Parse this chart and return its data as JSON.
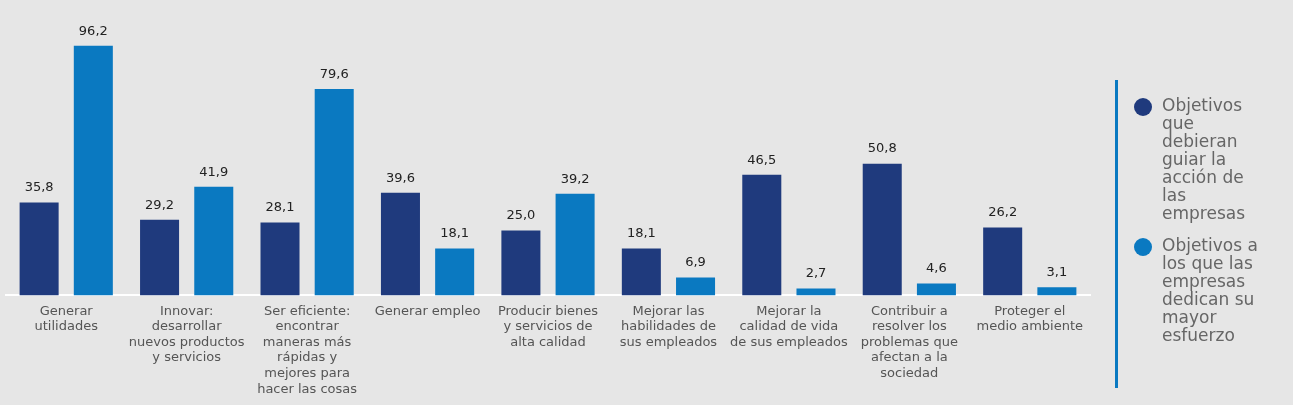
{
  "chart_data": {
    "type": "bar",
    "categories": [
      "Generar utilidades",
      "Innovar: desarrollar nuevos productos y servicios",
      "Ser eficiente: encontrar maneras más rápidas y mejores para hacer las cosas",
      "Generar empleo",
      "Producir bienes y servicios de alta calidad",
      "Mejorar las habilidades de sus empleados",
      "Mejorar la calidad de vida de sus empleados",
      "Contribuir a resolver los problemas que afectan a la sociedad",
      "Proteger el medio ambiente"
    ],
    "series": [
      {
        "name": "Objetivos que debieran guiar la acción de las empresas",
        "color": "#1f3a7d",
        "values": [
          35.8,
          29.2,
          28.1,
          39.6,
          25.0,
          18.1,
          46.5,
          50.8,
          26.2
        ],
        "value_labels": [
          "35,8",
          "29,2",
          "28,1",
          "39,6",
          "25,0",
          "18,1",
          "46,5",
          "50,8",
          "26,2"
        ]
      },
      {
        "name": "Objetivos a los que las empresas dedican su mayor esfuerzo",
        "color": "#0a79c1",
        "values": [
          96.2,
          41.9,
          79.6,
          18.1,
          39.2,
          6.9,
          2.7,
          4.6,
          3.1
        ],
        "value_labels": [
          "96,2",
          "41,9",
          "79,6",
          "18,1",
          "39,2",
          "6,9",
          "2,7",
          "4,6",
          "3,1"
        ]
      }
    ],
    "legend": "right",
    "grid": false
  }
}
